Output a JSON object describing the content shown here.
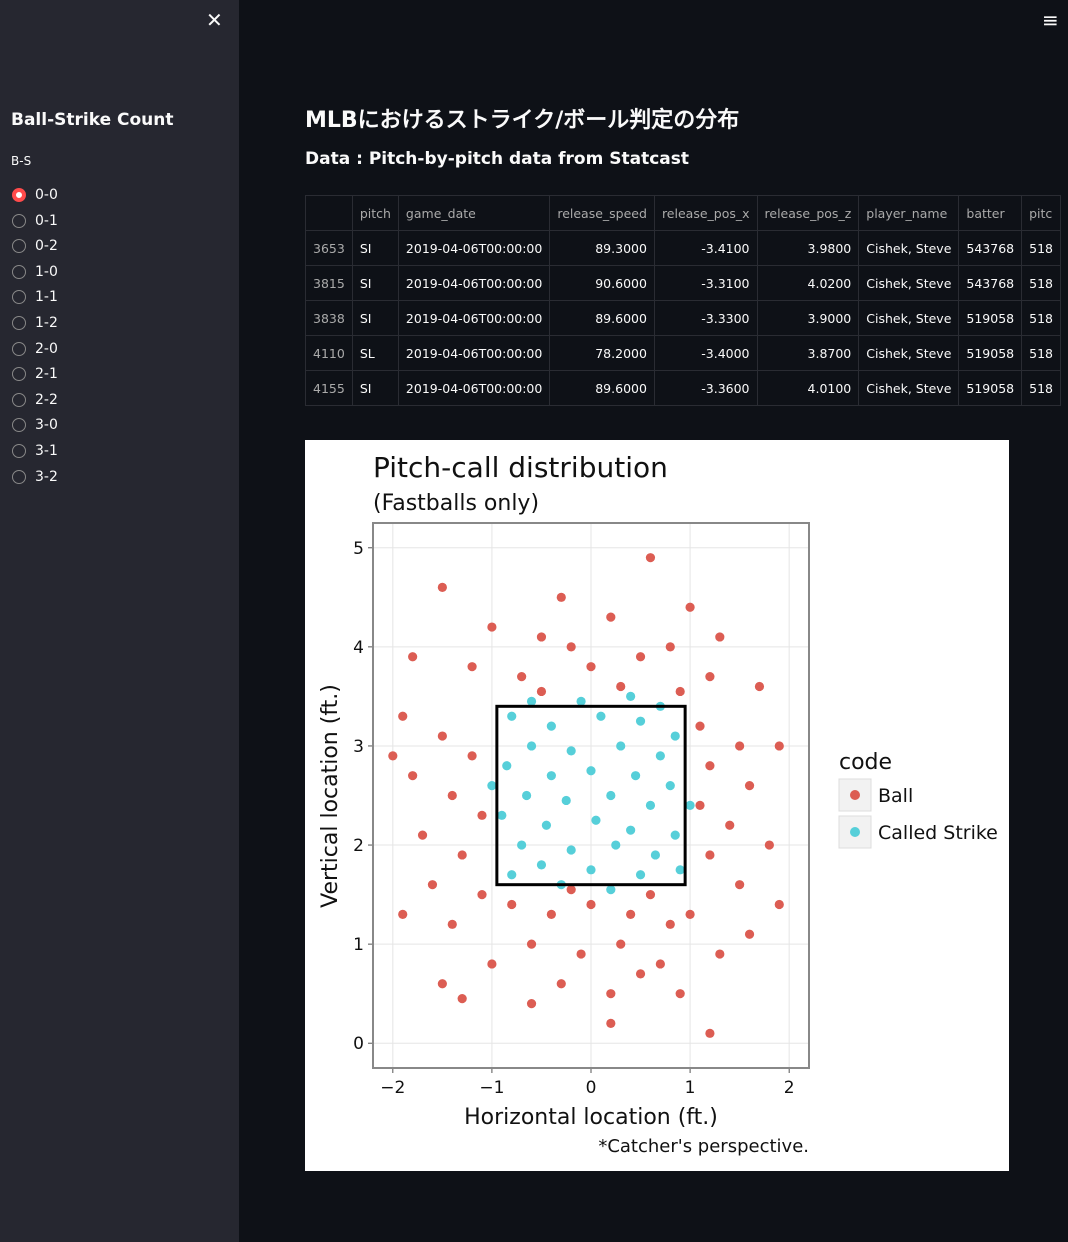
{
  "sidebar": {
    "heading": "Ball-Strike Count",
    "label": "B-S",
    "options": [
      "0-0",
      "0-1",
      "0-2",
      "1-0",
      "1-1",
      "1-2",
      "2-0",
      "2-1",
      "2-2",
      "3-0",
      "3-1",
      "3-2"
    ],
    "selected": 0
  },
  "header": {
    "title": "MLBにおけるストライク/ボール判定の分布",
    "subtitle": "Data : Pitch-by-pitch data from Statcast"
  },
  "table": {
    "columns": [
      "pitch",
      "game_date",
      "release_speed",
      "release_pos_x",
      "release_pos_z",
      "player_name",
      "batter",
      "pitc"
    ],
    "rows": [
      [
        "3653",
        "SI",
        "2019-04-06T00:00:00",
        "89.3000",
        "-3.4100",
        "3.9800",
        "Cishek, Steve",
        "543768",
        "518"
      ],
      [
        "3815",
        "SI",
        "2019-04-06T00:00:00",
        "90.6000",
        "-3.3100",
        "4.0200",
        "Cishek, Steve",
        "543768",
        "518"
      ],
      [
        "3838",
        "SI",
        "2019-04-06T00:00:00",
        "89.6000",
        "-3.3300",
        "3.9000",
        "Cishek, Steve",
        "519058",
        "518"
      ],
      [
        "4110",
        "SL",
        "2019-04-06T00:00:00",
        "78.2000",
        "-3.4000",
        "3.8700",
        "Cishek, Steve",
        "519058",
        "518"
      ],
      [
        "4155",
        "SI",
        "2019-04-06T00:00:00",
        "89.6000",
        "-3.3600",
        "4.0100",
        "Cishek, Steve",
        "519058",
        "518"
      ]
    ]
  },
  "chart_data": {
    "type": "scatter",
    "title": "Pitch-call distribution",
    "subtitle": "(Fastballs only)",
    "x_label": "Horizontal location (ft.)",
    "y_label": "Vertical location (ft.)",
    "caption": "*Catcher's perspective.",
    "legend_title": "code",
    "legend": "right",
    "grid": true,
    "xlim": [
      -2.2,
      2.2
    ],
    "ylim": [
      -0.25,
      5.25
    ],
    "xticks": [
      {
        "value": -2,
        "label": "−2"
      },
      {
        "value": -1,
        "label": "−1"
      },
      0,
      1,
      2
    ],
    "yticks": [
      0,
      1,
      2,
      3,
      4,
      5
    ],
    "strike_zone": {
      "x": [
        -0.95,
        0.95
      ],
      "y": [
        1.6,
        3.4
      ]
    },
    "series": [
      {
        "name": "Ball",
        "color": "#dc5d53",
        "x": [
          -1.5,
          -0.3,
          0.6,
          1.0,
          -1.0,
          -0.5,
          0.2,
          0.8,
          1.3,
          -1.8,
          -1.2,
          -0.7,
          0.0,
          0.5,
          1.2,
          1.7,
          -0.2,
          0.3,
          -0.5,
          0.9,
          -1.9,
          -1.5,
          -1.2,
          -1.8,
          -1.4,
          -1.1,
          -1.7,
          -1.3,
          -2.0,
          -1.6,
          -1.1,
          -1.9,
          -1.4,
          1.1,
          1.5,
          1.9,
          1.2,
          1.6,
          1.1,
          1.4,
          1.8,
          1.2,
          1.5,
          1.9,
          1.0,
          1.6,
          -0.8,
          -0.4,
          0.0,
          0.4,
          0.8,
          -0.6,
          -0.1,
          0.3,
          0.7,
          -1.0,
          -0.3,
          0.2,
          0.5,
          -0.6,
          0.9,
          -1.5,
          1.3,
          0.2,
          1.2,
          -1.3,
          0.6,
          -0.2
        ],
        "values": [
          4.6,
          4.5,
          4.9,
          4.4,
          4.2,
          4.1,
          4.3,
          4.0,
          4.1,
          3.9,
          3.8,
          3.7,
          3.8,
          3.9,
          3.7,
          3.6,
          4.0,
          3.6,
          3.55,
          3.55,
          3.3,
          3.1,
          2.9,
          2.7,
          2.5,
          2.3,
          2.1,
          1.9,
          2.9,
          1.6,
          1.5,
          1.3,
          1.2,
          3.2,
          3.0,
          3.0,
          2.8,
          2.6,
          2.4,
          2.2,
          2.0,
          1.9,
          1.6,
          1.4,
          1.3,
          1.1,
          1.4,
          1.3,
          1.4,
          1.3,
          1.2,
          1.0,
          0.9,
          1.0,
          0.8,
          0.8,
          0.6,
          0.5,
          0.7,
          0.4,
          0.5,
          0.6,
          0.9,
          0.2,
          0.1,
          0.45,
          1.5,
          1.55
        ]
      },
      {
        "name": "Called Strike",
        "color": "#56cfd9",
        "x": [
          -0.8,
          -0.4,
          0.1,
          0.5,
          0.85,
          -0.6,
          -0.2,
          0.3,
          0.7,
          -0.85,
          -0.4,
          0.0,
          0.45,
          0.8,
          -0.65,
          -0.25,
          0.2,
          0.6,
          -0.9,
          -0.45,
          0.05,
          0.4,
          0.85,
          -0.7,
          -0.2,
          0.25,
          0.65,
          -0.5,
          0.0,
          0.5,
          -0.8,
          0.9,
          -0.1,
          0.4,
          -1.0,
          1.0,
          -0.3,
          0.2,
          0.7,
          -0.6
        ],
        "values": [
          3.3,
          3.2,
          3.3,
          3.25,
          3.1,
          3.0,
          2.95,
          3.0,
          2.9,
          2.8,
          2.7,
          2.75,
          2.7,
          2.6,
          2.5,
          2.45,
          2.5,
          2.4,
          2.3,
          2.2,
          2.25,
          2.15,
          2.1,
          2.0,
          1.95,
          2.0,
          1.9,
          1.8,
          1.75,
          1.7,
          1.7,
          1.75,
          3.45,
          3.5,
          2.6,
          2.4,
          1.6,
          1.55,
          3.4,
          3.45
        ]
      }
    ]
  }
}
